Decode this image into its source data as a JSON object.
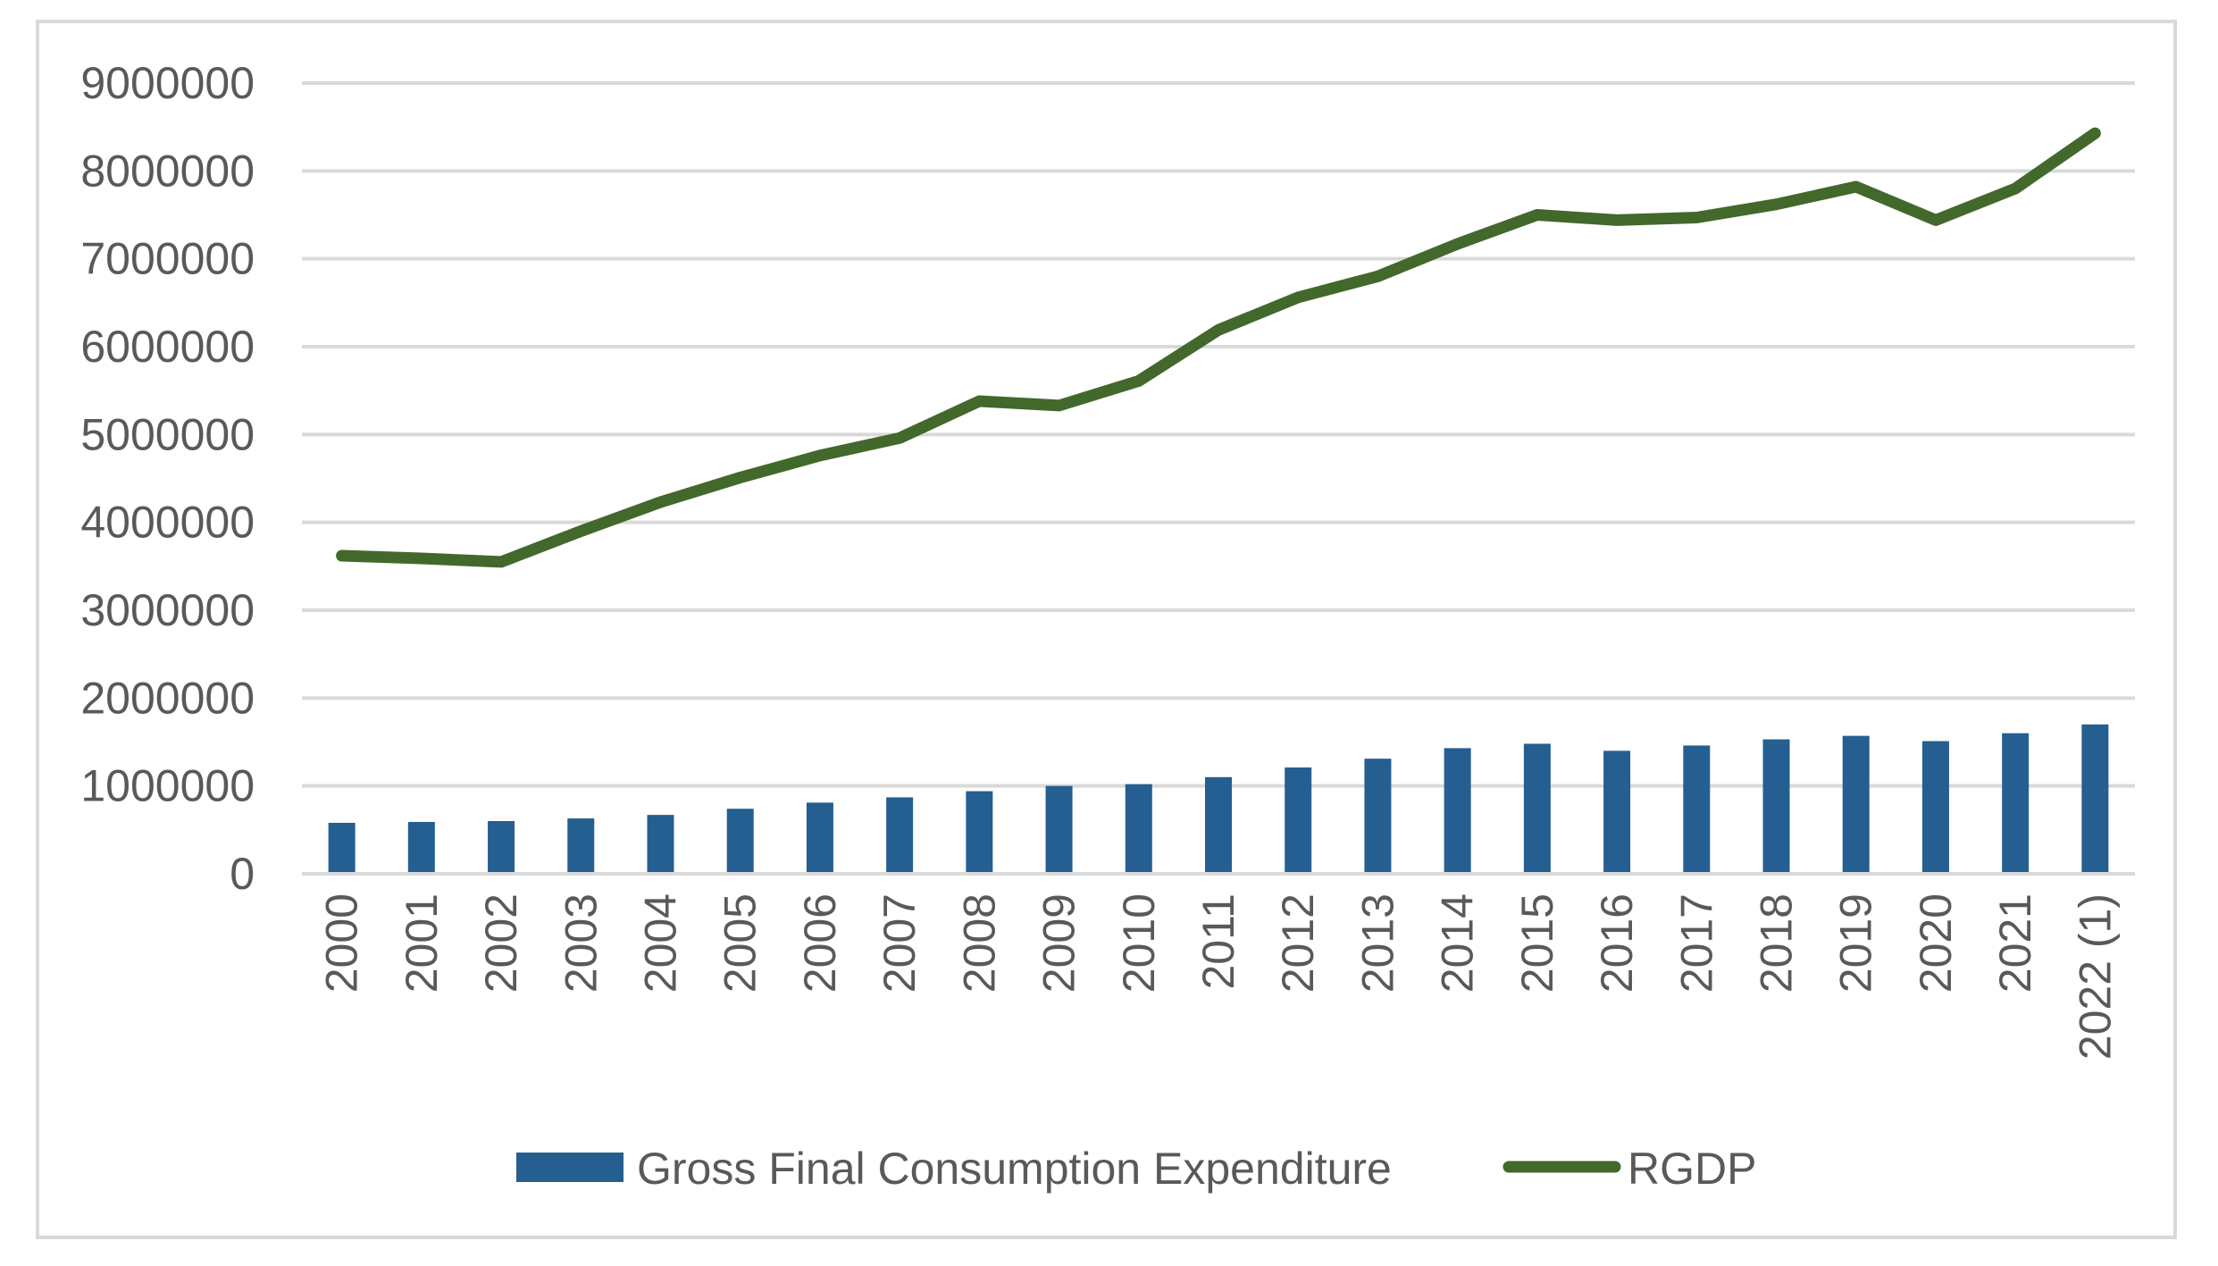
{
  "chart_data": {
    "type": "bar",
    "categories": [
      "2000",
      "2001",
      "2002",
      "2003",
      "2004",
      "2005",
      "2006",
      "2007",
      "2008",
      "2009",
      "2010",
      "2011",
      "2012",
      "2013",
      "2014",
      "2015",
      "2016",
      "2017",
      "2018",
      "2019",
      "2020",
      "2021",
      "2022 (1)"
    ],
    "series": [
      {
        "name": "Gross Final Consumption Expenditure",
        "type": "bar",
        "color": "#255e91",
        "values": [
          580000,
          590000,
          600000,
          630000,
          670000,
          740000,
          810000,
          870000,
          940000,
          1000000,
          1020000,
          1100000,
          1210000,
          1310000,
          1430000,
          1480000,
          1400000,
          1460000,
          1530000,
          1570000,
          1510000,
          1600000,
          1700000
        ]
      },
      {
        "name": "RGDP",
        "type": "line",
        "color": "#43682b",
        "values": [
          3620000,
          3590000,
          3550000,
          3900000,
          4230000,
          4510000,
          4760000,
          4960000,
          5380000,
          5330000,
          5610000,
          6190000,
          6560000,
          6800000,
          7170000,
          7500000,
          7440000,
          7470000,
          7620000,
          7820000,
          7440000,
          7800000,
          8430000
        ]
      }
    ],
    "ylim": [
      0,
      9000000
    ],
    "yticks": [
      "0",
      "1000000",
      "2000000",
      "3000000",
      "4000000",
      "5000000",
      "6000000",
      "7000000",
      "8000000",
      "9000000"
    ],
    "ytick_values": [
      0,
      1000000,
      2000000,
      3000000,
      4000000,
      5000000,
      6000000,
      7000000,
      8000000,
      9000000
    ],
    "grid": true,
    "legend": "bottom"
  }
}
